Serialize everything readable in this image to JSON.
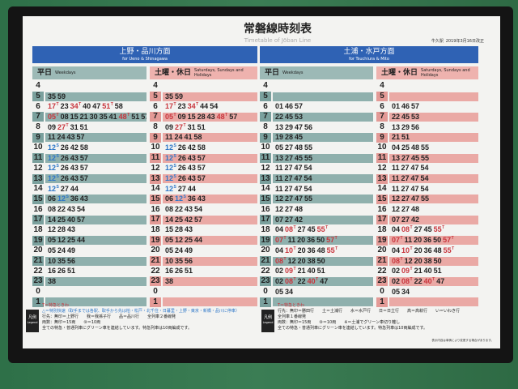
{
  "board": {
    "title": "常磐線時刻表",
    "subtitle": "Timetable of Jōban Line",
    "station": "牛久駅",
    "revision": "2019年3月16日改正",
    "note": "表示内容は事情により変更する場合があります。"
  },
  "colors": {
    "direction": "#2f62b4",
    "weekday": "#8fb0ad",
    "holiday": "#eaa9a5",
    "limited_express": "#c8343c",
    "special_rapid": "#2c76c8"
  },
  "minute_suffix_legend": {
    "T": "limited express (red)",
    "S": "special rapid (blue)"
  },
  "directions": [
    {
      "jp": "上野・品川方面",
      "en": "for Ueno & Shinagawa",
      "weekday": {
        "jp": "平日",
        "en": "Weekdays",
        "rows": [
          {
            "h": "4",
            "m": []
          },
          {
            "h": "5",
            "m": [
              "35",
              "59"
            ]
          },
          {
            "h": "6",
            "m": [
              "17T",
              "23",
              "34T",
              "40",
              "47",
              "51T",
              "58"
            ]
          },
          {
            "h": "7",
            "m": [
              "05T",
              "08",
              "15",
              "21",
              "30",
              "35",
              "41",
              "48T",
              "51",
              "57"
            ]
          },
          {
            "h": "8",
            "m": [
              "09",
              "27T",
              "31",
              "51"
            ]
          },
          {
            "h": "9",
            "m": [
              "11",
              "24",
              "43",
              "57"
            ]
          },
          {
            "h": "10",
            "m": [
              "12S",
              "26",
              "42",
              "58"
            ]
          },
          {
            "h": "11",
            "m": [
              "12S",
              "26",
              "43",
              "57"
            ]
          },
          {
            "h": "12",
            "m": [
              "12S",
              "26",
              "43",
              "57"
            ]
          },
          {
            "h": "13",
            "m": [
              "12S",
              "26",
              "43",
              "57"
            ]
          },
          {
            "h": "14",
            "m": [
              "12S",
              "27",
              "44"
            ]
          },
          {
            "h": "15",
            "m": [
              "06",
              "12S",
              "36",
              "43"
            ]
          },
          {
            "h": "16",
            "m": [
              "08",
              "22",
              "43",
              "54"
            ]
          },
          {
            "h": "17",
            "m": [
              "14",
              "25",
              "40",
              "57"
            ]
          },
          {
            "h": "18",
            "m": [
              "12",
              "28",
              "43"
            ]
          },
          {
            "h": "19",
            "m": [
              "05",
              "12",
              "25",
              "44"
            ]
          },
          {
            "h": "20",
            "m": [
              "05",
              "24",
              "49"
            ]
          },
          {
            "h": "21",
            "m": [
              "10",
              "35",
              "56"
            ]
          },
          {
            "h": "22",
            "m": [
              "16",
              "26",
              "51"
            ]
          },
          {
            "h": "23",
            "m": [
              "38"
            ]
          },
          {
            "h": "0",
            "m": []
          },
          {
            "h": "1",
            "m": []
          }
        ]
      },
      "holiday": {
        "jp": "土曜・休日",
        "en": "Saturdays, Sundays and Holidays",
        "rows": [
          {
            "h": "4",
            "m": []
          },
          {
            "h": "5",
            "m": [
              "35",
              "59"
            ]
          },
          {
            "h": "6",
            "m": [
              "17T",
              "23",
              "34T",
              "44",
              "54"
            ]
          },
          {
            "h": "7",
            "m": [
              "05T",
              "09",
              "15",
              "28",
              "43",
              "48T",
              "57"
            ]
          },
          {
            "h": "8",
            "m": [
              "09",
              "27T",
              "31",
              "51"
            ]
          },
          {
            "h": "9",
            "m": [
              "11",
              "24",
              "41",
              "58"
            ]
          },
          {
            "h": "10",
            "m": [
              "12S",
              "26",
              "42",
              "58"
            ]
          },
          {
            "h": "11",
            "m": [
              "12S",
              "26",
              "43",
              "57"
            ]
          },
          {
            "h": "12",
            "m": [
              "12S",
              "26",
              "43",
              "57"
            ]
          },
          {
            "h": "13",
            "m": [
              "12S",
              "26",
              "43",
              "57"
            ]
          },
          {
            "h": "14",
            "m": [
              "12S",
              "27",
              "44"
            ]
          },
          {
            "h": "15",
            "m": [
              "06",
              "12S",
              "36",
              "43"
            ]
          },
          {
            "h": "16",
            "m": [
              "08",
              "22",
              "43",
              "54"
            ]
          },
          {
            "h": "17",
            "m": [
              "14",
              "25",
              "42",
              "57"
            ]
          },
          {
            "h": "18",
            "m": [
              "15",
              "28",
              "43"
            ]
          },
          {
            "h": "19",
            "m": [
              "05",
              "12",
              "25",
              "44"
            ]
          },
          {
            "h": "20",
            "m": [
              "05",
              "24",
              "49"
            ]
          },
          {
            "h": "21",
            "m": [
              "10",
              "35",
              "56"
            ]
          },
          {
            "h": "22",
            "m": [
              "16",
              "26",
              "51"
            ]
          },
          {
            "h": "23",
            "m": [
              "38"
            ]
          },
          {
            "h": "0",
            "m": []
          },
          {
            "h": "1",
            "m": []
          }
        ]
      },
      "legend": [
        "T＝特急ときわ",
        "△＝特別快速（取手までは各駅、取手から先は柏・松戸・北千住・日暮里・上野・東京・新橋・品川に停車）",
        "行先：無印＝上野行　　我＝我孫子行　　品＝品川行　　全列車２番線発",
        "両数：無印＝15両　　⑩＝10両",
        "全ての特急・普通列車にグリーン車を連結しています。特急列車は10両編成です。"
      ]
    },
    {
      "jp": "土浦・水戸方面",
      "en": "for Tsuchiura & Mito",
      "weekday": {
        "jp": "平日",
        "en": "Weekdays",
        "rows": [
          {
            "h": "4",
            "m": []
          },
          {
            "h": "5",
            "m": []
          },
          {
            "h": "6",
            "m": [
              "01",
              "46",
              "57"
            ]
          },
          {
            "h": "7",
            "m": [
              "22",
              "45",
              "53"
            ]
          },
          {
            "h": "8",
            "m": [
              "13",
              "29",
              "47",
              "56"
            ]
          },
          {
            "h": "9",
            "m": [
              "19",
              "28",
              "45"
            ]
          },
          {
            "h": "10",
            "m": [
              "05",
              "27",
              "48",
              "55"
            ]
          },
          {
            "h": "11",
            "m": [
              "13",
              "27",
              "45",
              "55"
            ]
          },
          {
            "h": "12",
            "m": [
              "11",
              "27",
              "47",
              "54"
            ]
          },
          {
            "h": "13",
            "m": [
              "11",
              "27",
              "47",
              "54"
            ]
          },
          {
            "h": "14",
            "m": [
              "11",
              "27",
              "47",
              "54"
            ]
          },
          {
            "h": "15",
            "m": [
              "12",
              "27",
              "47",
              "55"
            ]
          },
          {
            "h": "16",
            "m": [
              "12",
              "27",
              "48"
            ]
          },
          {
            "h": "17",
            "m": [
              "07",
              "27",
              "42"
            ]
          },
          {
            "h": "18",
            "m": [
              "04",
              "08T",
              "27",
              "45",
              "55T"
            ]
          },
          {
            "h": "19",
            "m": [
              "07T",
              "11",
              "20",
              "36",
              "50",
              "57T"
            ]
          },
          {
            "h": "20",
            "m": [
              "04",
              "10T",
              "20",
              "36",
              "48",
              "55T"
            ]
          },
          {
            "h": "21",
            "m": [
              "08T",
              "12",
              "20",
              "38",
              "50"
            ]
          },
          {
            "h": "22",
            "m": [
              "02",
              "09T",
              "21",
              "40",
              "51"
            ]
          },
          {
            "h": "23",
            "m": [
              "02",
              "08T",
              "22",
              "40T",
              "47"
            ]
          },
          {
            "h": "0",
            "m": [
              "05",
              "34"
            ]
          },
          {
            "h": "1",
            "m": []
          }
        ]
      },
      "holiday": {
        "jp": "土曜・休日",
        "en": "Saturdays, Sundays and Holidays",
        "rows": [
          {
            "h": "4",
            "m": []
          },
          {
            "h": "5",
            "m": []
          },
          {
            "h": "6",
            "m": [
              "01",
              "46",
              "57"
            ]
          },
          {
            "h": "7",
            "m": [
              "22",
              "45",
              "53"
            ]
          },
          {
            "h": "8",
            "m": [
              "13",
              "29",
              "56"
            ]
          },
          {
            "h": "9",
            "m": [
              "21",
              "51"
            ]
          },
          {
            "h": "10",
            "m": [
              "04",
              "25",
              "48",
              "55"
            ]
          },
          {
            "h": "11",
            "m": [
              "13",
              "27",
              "45",
              "55"
            ]
          },
          {
            "h": "12",
            "m": [
              "11",
              "27",
              "47",
              "54"
            ]
          },
          {
            "h": "13",
            "m": [
              "11",
              "27",
              "47",
              "54"
            ]
          },
          {
            "h": "14",
            "m": [
              "11",
              "27",
              "47",
              "54"
            ]
          },
          {
            "h": "15",
            "m": [
              "12",
              "27",
              "47",
              "55"
            ]
          },
          {
            "h": "16",
            "m": [
              "12",
              "27",
              "48"
            ]
          },
          {
            "h": "17",
            "m": [
              "07",
              "27",
              "42"
            ]
          },
          {
            "h": "18",
            "m": [
              "04",
              "08T",
              "27",
              "45",
              "55T"
            ]
          },
          {
            "h": "19",
            "m": [
              "07T",
              "11",
              "20",
              "36",
              "50",
              "57T"
            ]
          },
          {
            "h": "20",
            "m": [
              "04",
              "10T",
              "20",
              "36",
              "48",
              "55T"
            ]
          },
          {
            "h": "21",
            "m": [
              "08T",
              "12",
              "20",
              "38",
              "50"
            ]
          },
          {
            "h": "22",
            "m": [
              "02",
              "09T",
              "21",
              "40",
              "51"
            ]
          },
          {
            "h": "23",
            "m": [
              "02",
              "08T",
              "22",
              "40T",
              "47"
            ]
          },
          {
            "h": "0",
            "m": [
              "05",
              "34"
            ]
          },
          {
            "h": "1",
            "m": []
          }
        ]
      },
      "legend": [
        "T＝特急ときわ",
        "行先：無印＝勝田行　　土＝土浦行　　水＝水戸行　　日＝日立行　　高＝高萩行　　い＝いわき行",
        "全列車１番線発",
        "両数：無印＝15両　　⑩＝10両　　※＝土浦でグリーン車切り離し",
        "全ての特急・普通列車にグリーン車を連結しています。特急列車は10両編成です。"
      ]
    }
  ],
  "legend_tag": {
    "jp": "凡例",
    "en": "Legend"
  }
}
